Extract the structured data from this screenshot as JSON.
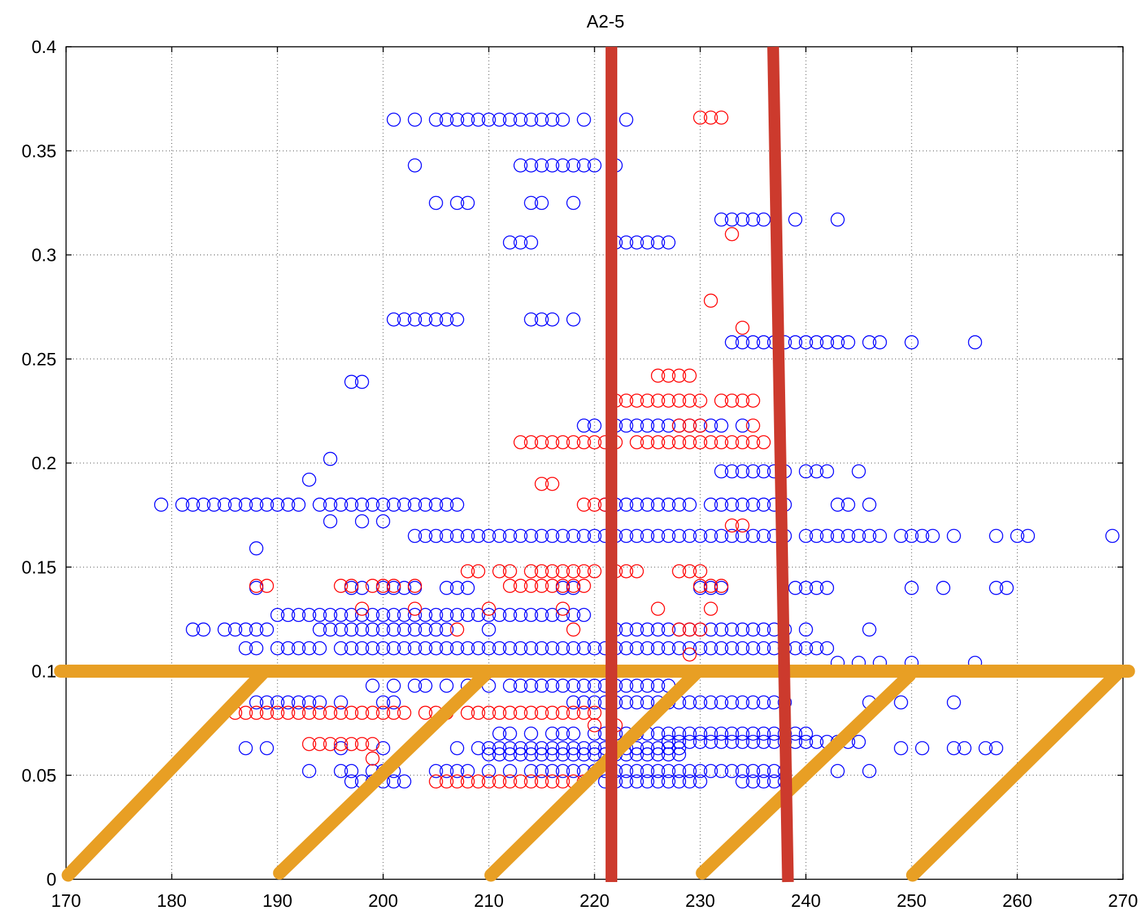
{
  "chart_data": {
    "type": "scatter",
    "title": "A2-5",
    "xlabel": "",
    "ylabel": "",
    "xlim": [
      170,
      270
    ],
    "ylim": [
      0,
      0.4
    ],
    "xticks": [
      "170",
      "180",
      "190",
      "200",
      "210",
      "220",
      "230",
      "240",
      "250",
      "260",
      "270"
    ],
    "yticks": [
      "0",
      "0.05",
      "0.1",
      "0.15",
      "0.2",
      "0.25",
      "0.3",
      "0.35",
      "0.4"
    ],
    "grid": true,
    "colors": {
      "blue": "#0000ff",
      "red": "#ff0000",
      "redline": "#cc3a2d",
      "orange": "#e89f24"
    },
    "series": [
      {
        "name": "blue",
        "marker": "circle",
        "color": "#0000ff",
        "rows": [
          {
            "y": 0.365,
            "x": [
              201,
              203,
              205,
              206,
              207,
              208,
              209,
              210,
              211,
              212,
              213,
              214,
              215,
              216,
              217,
              219,
              223
            ]
          },
          {
            "y": 0.343,
            "x": [
              203,
              213,
              214,
              215,
              216,
              217,
              218,
              219,
              220,
              222
            ]
          },
          {
            "y": 0.325,
            "x": [
              205,
              207,
              208,
              214,
              215,
              218
            ]
          },
          {
            "y": 0.306,
            "x": [
              212,
              213,
              214,
              222,
              223,
              224,
              225,
              226,
              227
            ]
          },
          {
            "y": 0.317,
            "x": [
              232,
              233,
              234,
              235,
              236,
              239,
              243
            ]
          },
          {
            "y": 0.269,
            "x": [
              201,
              202,
              203,
              204,
              205,
              206,
              207,
              214,
              215,
              216,
              218
            ]
          },
          {
            "y": 0.258,
            "x": [
              233,
              234,
              235,
              236,
              237,
              238,
              239,
              240,
              241,
              242,
              243,
              244,
              246,
              247,
              250,
              256
            ]
          },
          {
            "y": 0.239,
            "x": [
              197,
              198
            ]
          },
          {
            "y": 0.202,
            "x": [
              195
            ]
          },
          {
            "y": 0.192,
            "x": [
              193
            ]
          },
          {
            "y": 0.196,
            "x": [
              232,
              233,
              234,
              235,
              236,
              237,
              238,
              240,
              241,
              242,
              245
            ]
          },
          {
            "y": 0.218,
            "x": [
              219,
              220,
              222,
              223,
              224,
              225,
              226,
              227,
              228,
              229,
              230,
              231,
              232,
              234
            ]
          },
          {
            "y": 0.18,
            "x": [
              179,
              181,
              182,
              183,
              184,
              185,
              186,
              187,
              188,
              189,
              190,
              191,
              192,
              194,
              195,
              196,
              197,
              198,
              199,
              200,
              201,
              202,
              203,
              204,
              205,
              206,
              207
            ]
          },
          {
            "y": 0.18,
            "x": [
              221,
              222,
              223,
              224,
              225,
              226,
              227,
              228,
              229,
              231,
              232,
              233,
              234,
              235,
              236,
              237,
              238,
              243,
              244,
              246
            ]
          },
          {
            "y": 0.172,
            "x": [
              195,
              198,
              200
            ]
          },
          {
            "y": 0.159,
            "x": [
              188
            ]
          },
          {
            "y": 0.165,
            "x": [
              203,
              204,
              205,
              206,
              207,
              208,
              209,
              210,
              211,
              212,
              213,
              214,
              215,
              216,
              217,
              218,
              219,
              220,
              221,
              222,
              223,
              224,
              225,
              226,
              227,
              228,
              229,
              230,
              231,
              232,
              233,
              234,
              235,
              236,
              237,
              238,
              240,
              241,
              242,
              243,
              244,
              245,
              246,
              247,
              249,
              250,
              251,
              252,
              254,
              258,
              260,
              261,
              269
            ]
          },
          {
            "y": 0.14,
            "x": [
              188,
              197,
              198,
              200,
              201,
              202,
              203,
              206,
              207,
              208,
              217,
              218,
              230,
              231,
              232,
              239,
              240,
              241,
              242,
              250,
              253,
              258,
              259
            ]
          },
          {
            "y": 0.127,
            "x": [
              190,
              191,
              192,
              193,
              194,
              195,
              196,
              197,
              198,
              199,
              200,
              201,
              202,
              203,
              204,
              205,
              206,
              207,
              208,
              209,
              210,
              211,
              212,
              213,
              214,
              215,
              216,
              217,
              218,
              219
            ]
          },
          {
            "y": 0.12,
            "x": [
              182,
              183,
              185,
              186,
              187,
              188,
              189,
              194,
              195,
              196,
              197,
              198,
              199,
              200,
              201,
              202,
              203,
              204,
              205,
              206,
              210,
              222,
              223,
              224,
              225,
              226,
              227,
              228,
              229,
              230,
              231,
              232,
              233,
              234,
              235,
              236,
              237,
              238,
              240,
              246
            ]
          },
          {
            "y": 0.111,
            "x": [
              187,
              188,
              190,
              191,
              192,
              193,
              194,
              196,
              197,
              198,
              199,
              200,
              201,
              202,
              203,
              204,
              205,
              206,
              207,
              208,
              209,
              210,
              211,
              212,
              213,
              214,
              215,
              216,
              217,
              218,
              219,
              220,
              221,
              222,
              223,
              224,
              225,
              226,
              227,
              228,
              229,
              230,
              231,
              232,
              233,
              234,
              235,
              236,
              237,
              238,
              239,
              240,
              241,
              242
            ]
          },
          {
            "y": 0.104,
            "x": [
              243,
              245,
              247,
              250,
              256
            ]
          },
          {
            "y": 0.093,
            "x": [
              199,
              201,
              203,
              204,
              206,
              208,
              210,
              212,
              213,
              214,
              215,
              216,
              217,
              218,
              219,
              220,
              221,
              222,
              223,
              224,
              225,
              226,
              227
            ]
          },
          {
            "y": 0.085,
            "x": [
              188,
              189,
              190,
              191,
              192,
              193,
              194,
              196,
              200,
              201,
              218,
              219,
              220,
              221,
              222,
              223,
              224,
              225,
              226,
              227,
              228,
              229,
              230,
              231,
              232,
              233,
              234,
              235,
              236,
              237,
              238,
              246,
              249,
              254
            ]
          },
          {
            "y": 0.07,
            "x": [
              211,
              212,
              214,
              216,
              217,
              218,
              220,
              221,
              222,
              223,
              224,
              225,
              226,
              227,
              228,
              229,
              230,
              231,
              232,
              233,
              234,
              235,
              236,
              237,
              238,
              239,
              240
            ]
          },
          {
            "y": 0.066,
            "x": [
              227,
              228,
              229,
              230,
              231,
              232,
              233,
              234,
              235,
              236,
              237,
              238,
              239,
              240,
              241,
              242,
              243,
              244,
              245
            ]
          },
          {
            "y": 0.063,
            "x": [
              187,
              189,
              196,
              200,
              207,
              209,
              210,
              211,
              212,
              213,
              214,
              215,
              216,
              217,
              218,
              219,
              220,
              221,
              222,
              223,
              224,
              225,
              226,
              227,
              228,
              249,
              251,
              254,
              255,
              257,
              258
            ]
          },
          {
            "y": 0.06,
            "x": [
              210,
              211,
              212,
              213,
              214,
              215,
              216,
              217,
              218,
              219,
              220,
              221,
              222,
              223,
              224,
              225,
              226,
              227,
              228
            ]
          },
          {
            "y": 0.052,
            "x": [
              193,
              196,
              197,
              199,
              200,
              201,
              205,
              206,
              207,
              208,
              210,
              212,
              214,
              215,
              216,
              217,
              218,
              219,
              220,
              221,
              222,
              223,
              224,
              225,
              226,
              227,
              228,
              229,
              230,
              231,
              232,
              233,
              234,
              235,
              236,
              237,
              238,
              243,
              246
            ]
          },
          {
            "y": 0.047,
            "x": [
              197,
              198,
              199,
              200,
              201,
              202,
              221,
              222,
              223,
              224,
              225,
              226,
              227,
              228,
              229,
              230,
              234,
              235,
              236,
              237,
              238
            ]
          }
        ]
      },
      {
        "name": "red",
        "marker": "circle",
        "color": "#ff0000",
        "rows": [
          {
            "y": 0.366,
            "x": [
              230,
              231,
              232
            ]
          },
          {
            "y": 0.31,
            "x": [
              233
            ]
          },
          {
            "y": 0.278,
            "x": [
              231
            ]
          },
          {
            "y": 0.265,
            "x": [
              234
            ]
          },
          {
            "y": 0.242,
            "x": [
              226,
              227,
              228,
              229
            ]
          },
          {
            "y": 0.23,
            "x": [
              222,
              223,
              224,
              225,
              226,
              227,
              228,
              229,
              230,
              232,
              233,
              234,
              235
            ]
          },
          {
            "y": 0.218,
            "x": [
              228,
              229,
              230,
              235
            ]
          },
          {
            "y": 0.21,
            "x": [
              213,
              214,
              215,
              216,
              217,
              218,
              219,
              220,
              221,
              222,
              224,
              225,
              226,
              227,
              228,
              229,
              230,
              231,
              232,
              233,
              234,
              235,
              236
            ]
          },
          {
            "y": 0.19,
            "x": [
              215,
              216
            ]
          },
          {
            "y": 0.18,
            "x": [
              219,
              220,
              221
            ]
          },
          {
            "y": 0.17,
            "x": [
              233,
              234
            ]
          },
          {
            "y": 0.148,
            "x": [
              208,
              209,
              211,
              212,
              214,
              215,
              216,
              217,
              218,
              219,
              220,
              222,
              223,
              224,
              228,
              229,
              230
            ]
          },
          {
            "y": 0.141,
            "x": [
              188,
              189,
              196,
              197,
              199,
              200,
              201,
              203,
              212,
              213,
              214,
              215,
              216,
              217,
              218,
              219,
              230,
              231,
              232
            ]
          },
          {
            "y": 0.13,
            "x": [
              198,
              203,
              210,
              217,
              226,
              231
            ]
          },
          {
            "y": 0.12,
            "x": [
              207,
              218,
              228,
              229,
              230
            ]
          },
          {
            "y": 0.108,
            "x": [
              229
            ]
          },
          {
            "y": 0.08,
            "x": [
              186,
              187,
              188,
              189,
              190,
              191,
              192,
              193,
              194,
              195,
              196,
              197,
              198,
              199,
              200,
              201,
              202,
              204,
              205,
              206,
              208,
              209,
              210,
              211,
              212,
              213,
              214,
              215,
              216,
              217,
              218,
              219,
              220
            ]
          },
          {
            "y": 0.074,
            "x": [
              220,
              222
            ]
          },
          {
            "y": 0.065,
            "x": [
              193,
              194,
              195,
              196,
              197,
              198,
              199
            ]
          },
          {
            "y": 0.058,
            "x": [
              199
            ]
          },
          {
            "y": 0.047,
            "x": [
              205,
              206,
              207,
              208,
              209,
              210,
              211,
              212,
              213,
              214,
              215,
              216,
              217,
              218,
              219
            ]
          }
        ]
      }
    ],
    "annotations": {
      "vertical_red_lines": [
        {
          "x_top": 221.6,
          "x_bottom": 221.6
        },
        {
          "x_top": 236.9,
          "x_bottom": 238.3
        }
      ],
      "orange_horizontal_line": {
        "y": 0.1,
        "x_from": 170,
        "x_to": 270
      },
      "orange_diagonals": [
        {
          "x0": 170.2,
          "y0": 0.002,
          "x1": 188.8,
          "y1": 0.1
        },
        {
          "x0": 190.2,
          "y0": 0.003,
          "x1": 210.0,
          "y1": 0.1
        },
        {
          "x0": 210.2,
          "y0": 0.002,
          "x1": 229.8,
          "y1": 0.1
        },
        {
          "x0": 230.2,
          "y0": 0.003,
          "x1": 249.8,
          "y1": 0.098
        },
        {
          "x0": 250.1,
          "y0": 0.002,
          "x1": 269.7,
          "y1": 0.1
        }
      ]
    }
  }
}
